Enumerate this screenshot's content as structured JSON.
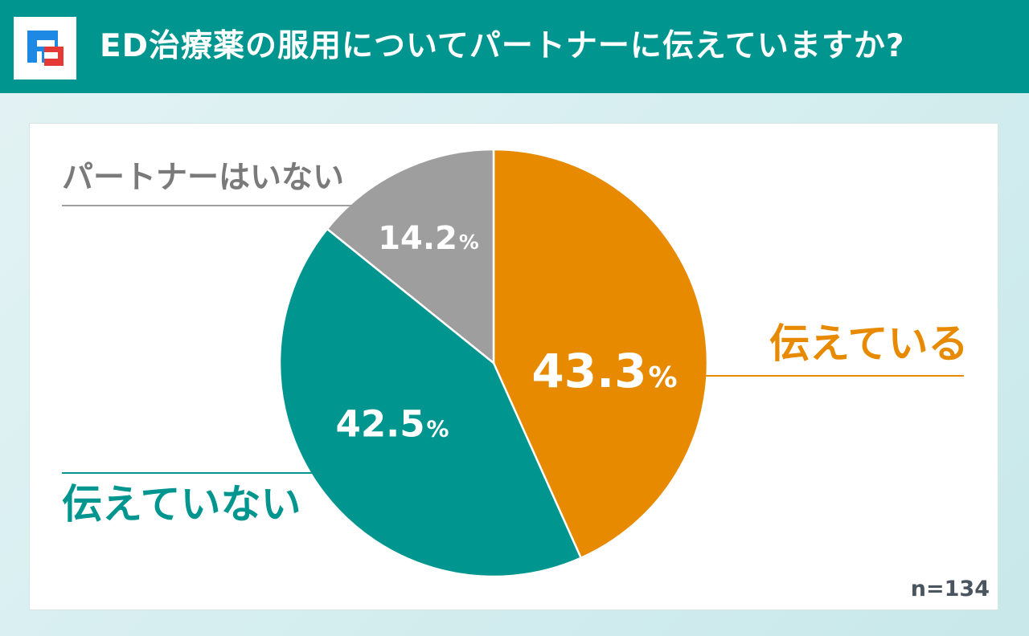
{
  "header": {
    "title": "ED治療薬の服用についてパートナーに伝えていますか?"
  },
  "chart_data": {
    "type": "pie",
    "title": "ED治療薬の服用についてパートナーに伝えていますか?",
    "unit": "%",
    "slices": [
      {
        "label": "伝えている",
        "value": 43.3,
        "value_text": "43.3",
        "color": "#e88a00",
        "label_color": "#e88a00"
      },
      {
        "label": "伝えていない",
        "value": 42.5,
        "value_text": "42.5",
        "color": "#00968f",
        "label_color": "#00968f"
      },
      {
        "label": "パートナーはいない",
        "value": 14.2,
        "value_text": "14.2",
        "color": "#9e9e9e",
        "label_color": "#7a7a7a"
      }
    ],
    "sample_size": "n=134"
  }
}
